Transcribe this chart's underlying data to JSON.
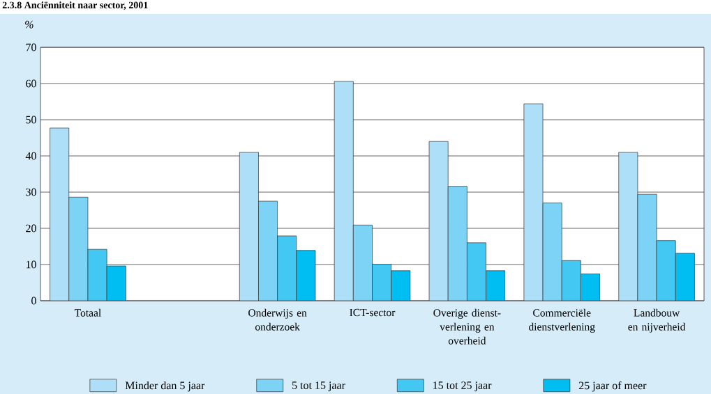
{
  "chart_data": {
    "type": "bar",
    "title": "2.3.8 Anciënniteit naar sector, 2001",
    "ylabel": "%",
    "categories": [
      "Totaal",
      null,
      "Onderwijs en onderzoek",
      "ICT-sector",
      "Overige dienst- verlening en overheid",
      "Commerciële dienstverlening",
      "Landbouw en nijverheid"
    ],
    "series": [
      {
        "name": "Minder dan 5 jaar",
        "color": "#addff8",
        "values": [
          47.7,
          null,
          41,
          60.6,
          44,
          54.4,
          41
        ]
      },
      {
        "name": "5 tot 15 jaar",
        "color": "#7dd3f5",
        "values": [
          28.6,
          null,
          27.5,
          20.9,
          31.6,
          27,
          29.4
        ]
      },
      {
        "name": "15 tot 25 jaar",
        "color": "#42c8f2",
        "values": [
          14.2,
          null,
          17.9,
          10.1,
          16,
          11.1,
          16.6
        ]
      },
      {
        "name": "25 jaar of meer",
        "color": "#00bdf2",
        "values": [
          9.6,
          null,
          13.9,
          8.3,
          8.3,
          7.4,
          13.1
        ]
      }
    ],
    "ylim": [
      0,
      70
    ],
    "yticks": [
      0,
      10,
      20,
      30,
      40,
      50,
      60,
      70
    ],
    "grid": "y",
    "legend": "bottom"
  }
}
